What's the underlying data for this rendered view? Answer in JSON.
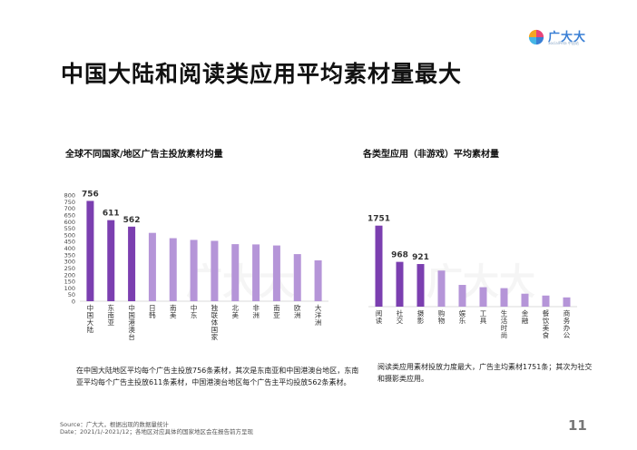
{
  "brand": {
    "name_cn": "广大大",
    "name_en": "SocialPeta 中国站"
  },
  "title": "中国大陆和阅读类应用平均素材量最大",
  "chart_data": [
    {
      "type": "bar",
      "title": "全球不同国家/地区广告主投放素材均量",
      "categories": [
        "中国大陆",
        "东南亚",
        "中国港澳台",
        "日韩",
        "南美",
        "中东",
        "独联体国家",
        "北美",
        "非洲",
        "南亚",
        "欧洲",
        "大洋洲"
      ],
      "values": [
        756,
        611,
        562,
        515,
        475,
        462,
        455,
        430,
        428,
        420,
        355,
        308
      ],
      "labels": [
        "756",
        "611",
        "562",
        null,
        null,
        null,
        null,
        null,
        null,
        null,
        null,
        null
      ],
      "yticks": [
        0,
        50,
        100,
        150,
        200,
        250,
        300,
        350,
        400,
        450,
        500,
        550,
        600,
        650,
        700,
        750,
        800
      ],
      "ylim": [
        0,
        800
      ],
      "colors": {
        "dark": "#7b3fb0",
        "light": "#b595d8"
      },
      "highlight_count": 3
    },
    {
      "type": "bar",
      "title": "各类型应用（非游戏）平均素材量",
      "categories": [
        "阅读",
        "社交",
        "摄影",
        "购物",
        "娱乐",
        "工具",
        "生活时尚",
        "金融",
        "餐饮美食",
        "商务办公"
      ],
      "values": [
        1751,
        968,
        921,
        780,
        470,
        420,
        400,
        280,
        240,
        200
      ],
      "labels": [
        "1751",
        "968",
        "921",
        null,
        null,
        null,
        null,
        null,
        null,
        null
      ],
      "ylim": [
        0,
        2000
      ],
      "colors": {
        "dark": "#7b3fb0",
        "light": "#b595d8"
      },
      "highlight_count": 3
    }
  ],
  "desc1": "在中国大陆地区平均每个广告主投放756条素材，其次是东南亚和中国港澳台地区，东南亚平均每个广告主投放611条素材，中国港澳台地区每个广告主平均投放562条素材。",
  "desc2": "阅读类应用素材投放力度最大，广告主均素材1751条；其次为社交和摄影类应用。",
  "source1": "Source：广大大，根据出现的数据量统计",
  "source2": "Date：2021/1/-2021/12；各地区对应具体的国家地区会在报告前方呈现",
  "page_number": "11",
  "watermark": "广大大"
}
